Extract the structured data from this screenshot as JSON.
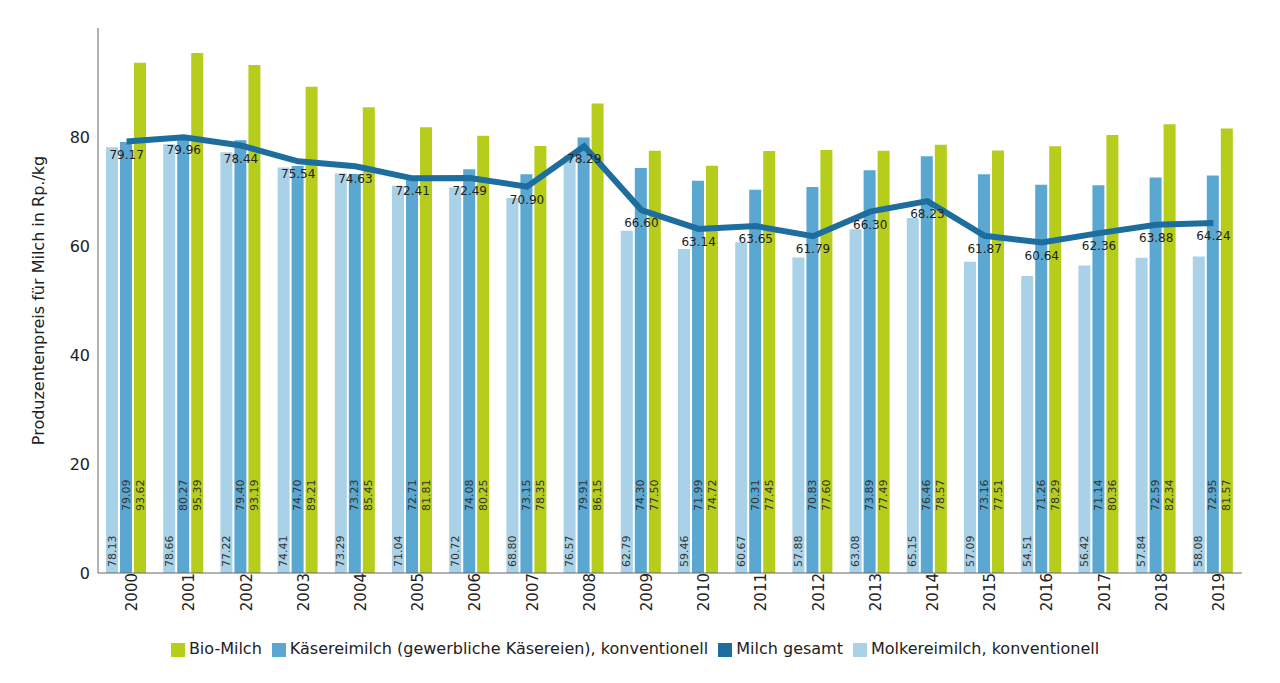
{
  "chart_data": {
    "type": "bar",
    "y_label": "Produzentenpreis für Milch in Rp./kg",
    "categories": [
      "2000",
      "2001",
      "2002",
      "2003",
      "2004",
      "2005",
      "2006",
      "2007",
      "2008",
      "2009",
      "2010",
      "2011",
      "2012",
      "2013",
      "2014",
      "2015",
      "2016",
      "2017",
      "2018",
      "2019"
    ],
    "series": [
      {
        "name": "Molkereimilch, konventionell",
        "type": "bar",
        "color": "#a9d1e8",
        "values": [
          78.13,
          78.66,
          77.22,
          74.41,
          73.29,
          71.04,
          70.72,
          68.8,
          76.57,
          62.79,
          59.46,
          60.67,
          57.88,
          63.08,
          65.15,
          57.09,
          54.51,
          56.42,
          57.84,
          58.08
        ],
        "value_labels": [
          "78.13",
          "78.66",
          "77.22",
          "74.41",
          "73.29",
          "71.04",
          "70.72",
          "68.80",
          "76.57",
          "62.79",
          "59.46",
          "60.67",
          "57.88",
          "63.08",
          "65.15",
          "57.09",
          "54.51",
          "56.42",
          "57.84",
          "58.08"
        ]
      },
      {
        "name": "Käsereimilch (gewerbliche Käsereien), konventionell",
        "type": "bar",
        "color": "#5aa7d1",
        "values": [
          79.09,
          80.27,
          79.4,
          74.7,
          73.23,
          72.71,
          74.08,
          73.15,
          79.91,
          74.3,
          71.99,
          70.31,
          70.83,
          73.89,
          76.46,
          73.16,
          71.26,
          71.14,
          72.59,
          72.95
        ],
        "value_labels": [
          "79.09",
          "80.27",
          "79.40",
          "74.70",
          "73.23",
          "72.71",
          "74.08",
          "73.15",
          "79.91",
          "74.30",
          "71.99",
          "70.31",
          "70.83",
          "73.89",
          "76.46",
          "73.16",
          "71.26",
          "71.14",
          "72.59",
          "72.95"
        ]
      },
      {
        "name": "Bio-Milch",
        "type": "bar",
        "color": "#b6cd1c",
        "values": [
          93.62,
          95.39,
          93.19,
          89.21,
          85.45,
          81.81,
          80.25,
          78.35,
          86.15,
          77.5,
          74.72,
          77.45,
          77.6,
          77.49,
          78.57,
          77.51,
          78.29,
          80.36,
          82.34,
          81.57
        ],
        "value_labels": [
          "93.62",
          "95.39",
          "93.19",
          "89.21",
          "85.45",
          "81.81",
          "80.25",
          "78.35",
          "86.15",
          "77.50",
          "74.72",
          "77.45",
          "77.60",
          "77.49",
          "78.57",
          "77.51",
          "78.29",
          "80.36",
          "82.34",
          "81.57"
        ]
      },
      {
        "name": "Milch gesamt",
        "type": "line",
        "color": "#1d6e9e",
        "values": [
          79.17,
          79.96,
          78.44,
          75.54,
          74.63,
          72.41,
          72.49,
          70.9,
          78.29,
          66.6,
          63.14,
          63.65,
          61.79,
          66.3,
          68.23,
          61.87,
          60.64,
          62.36,
          63.88,
          64.24
        ],
        "value_labels": [
          "79.17",
          "79.96",
          "78.44",
          "75.54",
          "74.63",
          "72.41",
          "72.49",
          "70.90",
          "78.29",
          "66.60",
          "63.14",
          "63.65",
          "61.79",
          "66.30",
          "68.23",
          "61.87",
          "60.64",
          "62.36",
          "63.88",
          "64.24"
        ]
      }
    ],
    "ylim": [
      0,
      100
    ],
    "yticks": [
      0,
      20,
      40,
      60,
      80
    ],
    "grid": false,
    "legend": "bottom",
    "data_labels": true
  }
}
